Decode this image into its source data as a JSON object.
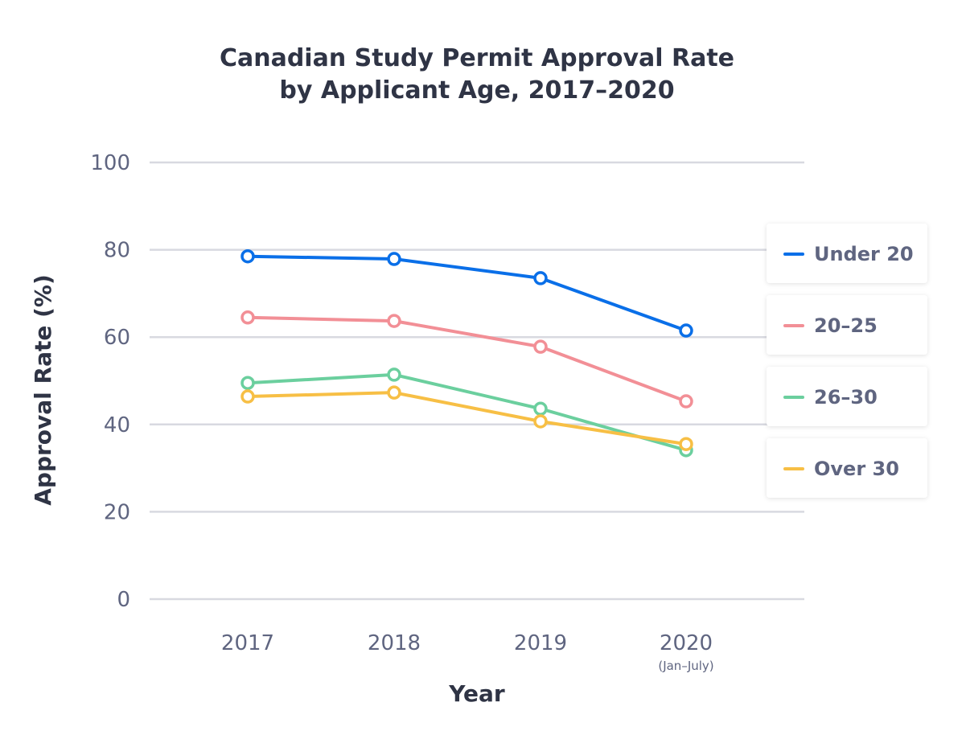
{
  "chart_data": {
    "type": "line",
    "title_lines": [
      "Canadian Study Permit Approval Rate",
      "by Applicant Age, 2017–2020"
    ],
    "xlabel": "Year",
    "ylabel": "Approval Rate (%)",
    "categories": [
      "2017",
      "2018",
      "2019",
      "2020"
    ],
    "category_sublabels": [
      "",
      "",
      "",
      "(Jan–July)"
    ],
    "ylim": [
      0,
      100
    ],
    "yticks": [
      0,
      20,
      40,
      60,
      80,
      100
    ],
    "grid": true,
    "legend_placement": "right",
    "series": [
      {
        "name": "Under 20",
        "color": "#0a6fe8",
        "values": [
          78.5,
          77.9,
          73.5,
          61.5
        ]
      },
      {
        "name": "20–25",
        "color": "#f28f96",
        "values": [
          64.5,
          63.7,
          57.8,
          45.3
        ]
      },
      {
        "name": "26–30",
        "color": "#6bcf9e",
        "values": [
          49.5,
          51.4,
          43.6,
          34.1
        ]
      },
      {
        "name": "Over 30",
        "color": "#f7bf45",
        "values": [
          46.4,
          47.3,
          40.7,
          35.5
        ]
      }
    ]
  }
}
